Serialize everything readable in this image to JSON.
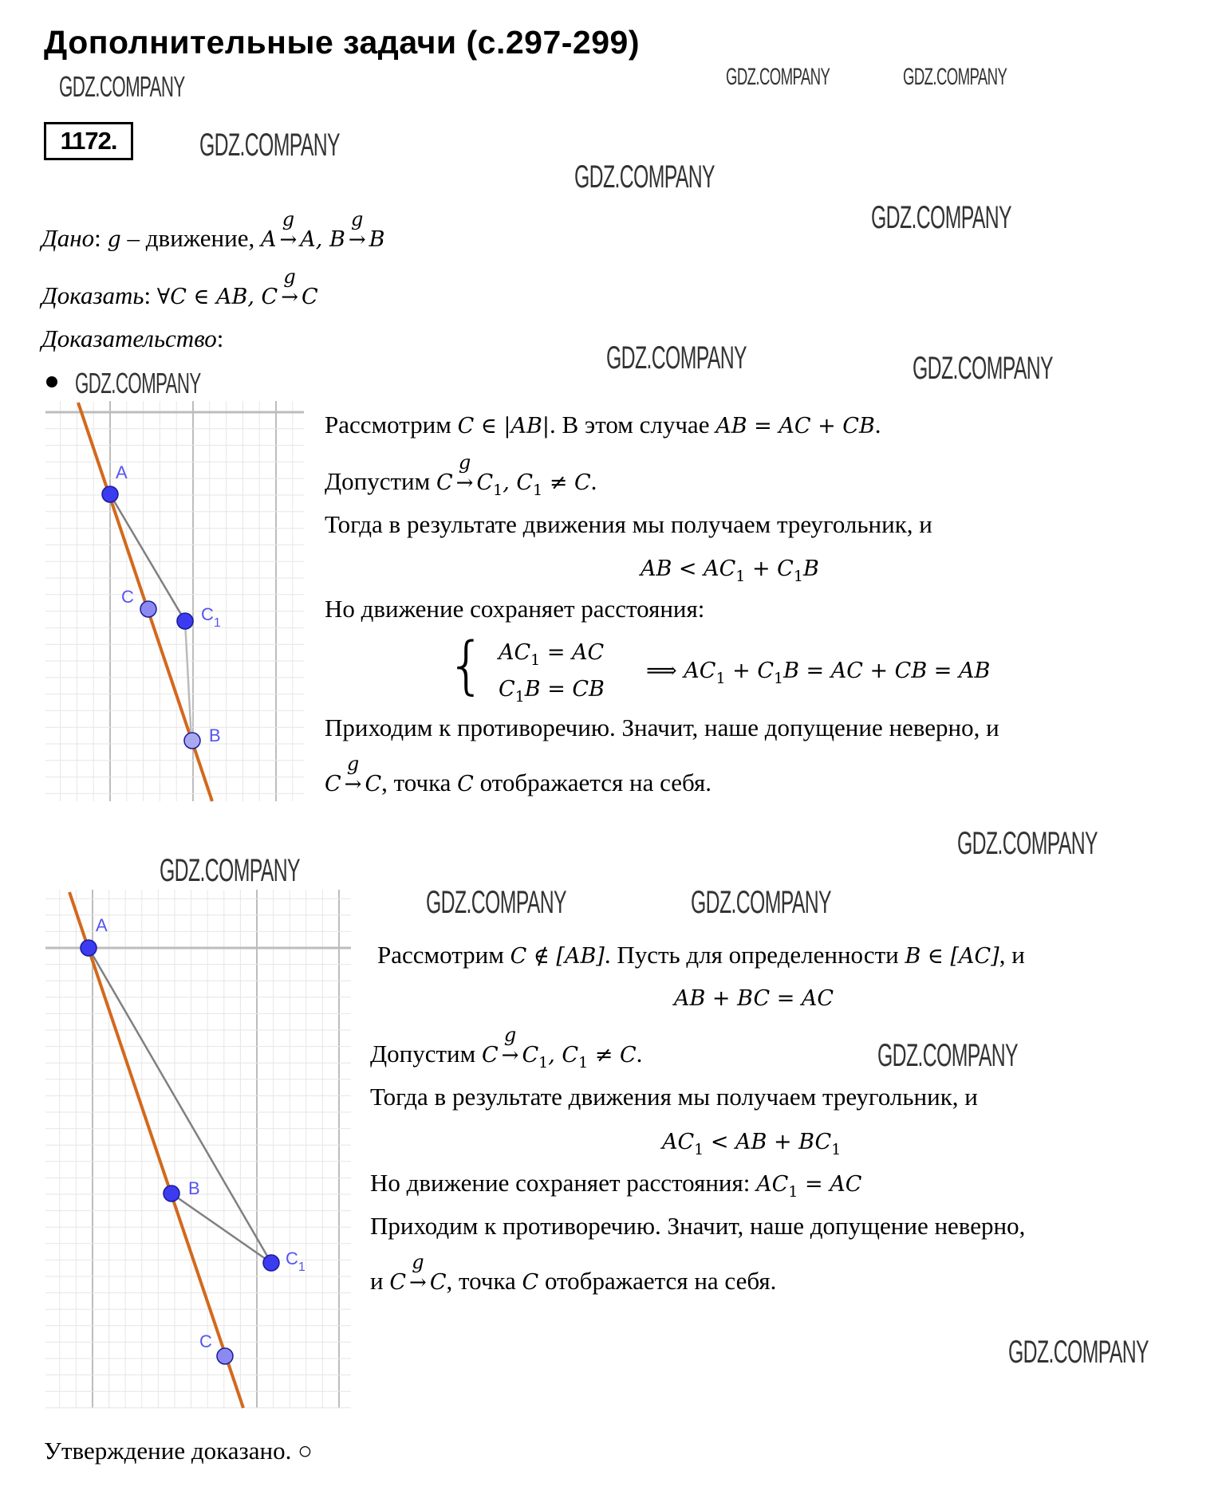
{
  "header": {
    "title": "Дополнительные задачи (с.297-299)",
    "problem_number": "1172."
  },
  "watermark": "GDZ.COMPANY",
  "given": [
    {
      "t": "Дано",
      "c": "it"
    },
    {
      "t": ": "
    },
    {
      "t": "g",
      "c": "m"
    },
    {
      "t": " – движение, "
    },
    {
      "t": "A",
      "c": "m"
    },
    {
      "arrow": "g"
    },
    {
      "t": "A, B",
      "c": "m"
    },
    {
      "arrow": "g"
    },
    {
      "t": "B",
      "c": "m"
    }
  ],
  "prove": [
    {
      "t": "Доказать",
      "c": "it"
    },
    {
      "t": ": "
    },
    {
      "t": "∀C ∈ AB, C",
      "c": "m"
    },
    {
      "arrow": "g"
    },
    {
      "t": "C",
      "c": "m"
    }
  ],
  "proof_label": [
    {
      "t": "Доказательство",
      "c": "it"
    },
    {
      "t": ":"
    }
  ],
  "case1": {
    "figure_labels": {
      "A": "A",
      "C": "C",
      "C1": "C",
      "C1_sub": "1",
      "B": "B"
    },
    "lines": [
      [
        {
          "t": "Рассмотрим "
        },
        {
          "t": "C ∈ |AB|",
          "c": "m"
        },
        {
          "t": ". В этом случае "
        },
        {
          "t": "AB = AC + CB",
          "c": "m"
        },
        {
          "t": "."
        }
      ],
      [
        {
          "t": "Допустим "
        },
        {
          "t": "C",
          "c": "m"
        },
        {
          "arrow": "g"
        },
        {
          "t": "C",
          "c": "m"
        },
        {
          "sub": "1"
        },
        {
          "t": ", C",
          "c": "m"
        },
        {
          "sub": "1"
        },
        {
          "t": " ≠ C",
          "c": "m"
        },
        {
          "t": "."
        }
      ],
      [
        {
          "t": "Тогда в результате движения мы получаем треугольник, и"
        }
      ],
      [
        {
          "t": "AB < AC",
          "c": "m"
        },
        {
          "sub": "1"
        },
        {
          "t": " + C",
          "c": "m"
        },
        {
          "sub": "1"
        },
        {
          "t": "B",
          "c": "m"
        }
      ],
      [
        {
          "t": "Но движение сохраняет расстояния:"
        }
      ],
      [
        {
          "t": "AC",
          "c": "m"
        },
        {
          "sub": "1"
        },
        {
          "t": " = AC",
          "c": "m"
        }
      ],
      [
        {
          "t": "C",
          "c": "m"
        },
        {
          "sub": "1"
        },
        {
          "t": "B = CB",
          "c": "m"
        }
      ],
      [
        {
          "t": "⟹ AC",
          "c": "m"
        },
        {
          "sub": "1"
        },
        {
          "t": " + C",
          "c": "m"
        },
        {
          "sub": "1"
        },
        {
          "t": "B = AC + CB = AB",
          "c": "m"
        }
      ],
      [
        {
          "t": "Приходим к противоречию. Значит, наше допущение неверно, и"
        }
      ],
      [
        {
          "t": "C",
          "c": "m"
        },
        {
          "arrow": "g"
        },
        {
          "t": "C",
          "c": "m"
        },
        {
          "t": ", точка "
        },
        {
          "t": "C",
          "c": "m"
        },
        {
          "t": " отображается на себя."
        }
      ]
    ]
  },
  "case2": {
    "figure_labels": {
      "A": "A",
      "B": "B",
      "C1": "C",
      "C1_sub": "1",
      "C": "C"
    },
    "lines": [
      [
        {
          "t": "Рассмотрим "
        },
        {
          "t": "C ∉ [AB]",
          "c": "m"
        },
        {
          "t": ". Пусть для определенности "
        },
        {
          "t": "B ∈ [AC]",
          "c": "m"
        },
        {
          "t": ", и"
        }
      ],
      [
        {
          "t": "AB + BC = AC",
          "c": "m"
        }
      ],
      [
        {
          "t": "Допустим "
        },
        {
          "t": "C",
          "c": "m"
        },
        {
          "arrow": "g"
        },
        {
          "t": "C",
          "c": "m"
        },
        {
          "sub": "1"
        },
        {
          "t": ", C",
          "c": "m"
        },
        {
          "sub": "1"
        },
        {
          "t": " ≠ C",
          "c": "m"
        },
        {
          "t": "."
        }
      ],
      [
        {
          "t": "Тогда в результате движения мы получаем треугольник, и"
        }
      ],
      [
        {
          "t": "AC",
          "c": "m"
        },
        {
          "sub": "1"
        },
        {
          "t": " < AB + BC",
          "c": "m"
        },
        {
          "sub": "1"
        }
      ],
      [
        {
          "t": "Но движение сохраняет расстояния: "
        },
        {
          "t": "AC",
          "c": "m"
        },
        {
          "sub": "1"
        },
        {
          "t": " = AC",
          "c": "m"
        }
      ],
      [
        {
          "t": "Приходим к противоречию. Значит, наше допущение неверно,"
        }
      ],
      [
        {
          "t": "и "
        },
        {
          "t": "C",
          "c": "m"
        },
        {
          "arrow": "g"
        },
        {
          "t": "C",
          "c": "m"
        },
        {
          "t": ", точка "
        },
        {
          "t": "C",
          "c": "m"
        },
        {
          "t": " отображается на себя."
        }
      ]
    ]
  },
  "conclusion": "Утверждение доказано. ○",
  "colors": {
    "line": "#d2691e",
    "point": "#3b3bf0",
    "point_light": "#8a8af0",
    "segment": "#808080",
    "grid_major": "#bdbdbd",
    "grid_minor": "#e6e6e6",
    "label": "#5555ee"
  }
}
